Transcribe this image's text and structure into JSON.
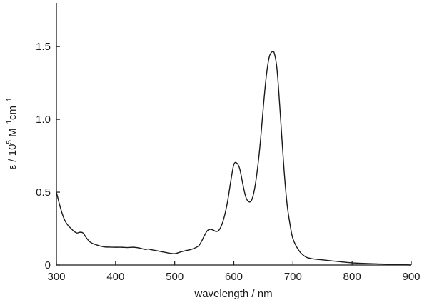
{
  "chart_data": {
    "type": "line",
    "title": "",
    "xlabel": "wavelength / nm",
    "ylabel": {
      "prefix": "ε / 10",
      "exp1": "5",
      "mid1": " M",
      "exp2": "−1",
      "mid2": "cm",
      "exp3": "−1"
    },
    "xlim": [
      300,
      900
    ],
    "ylim": [
      0,
      1.8
    ],
    "x_ticks": [
      300,
      400,
      500,
      600,
      700,
      800,
      900
    ],
    "x_tick_labels": [
      "300",
      "400",
      "500",
      "600",
      "700",
      "800",
      "900"
    ],
    "y_ticks": [
      0,
      0.5,
      1.0,
      1.5
    ],
    "y_tick_labels": [
      "0",
      "0.5",
      "1.0",
      "1.5"
    ],
    "grid": false,
    "series": [
      {
        "color": "#1a1a1a",
        "x": [
          300,
          305,
          310,
          315,
          320,
          325,
          330,
          335,
          340,
          345,
          350,
          355,
          360,
          370,
          380,
          390,
          400,
          410,
          420,
          430,
          440,
          450,
          455,
          460,
          470,
          480,
          490,
          500,
          510,
          520,
          530,
          540,
          545,
          550,
          555,
          560,
          565,
          570,
          575,
          580,
          585,
          590,
          595,
          600,
          605,
          610,
          615,
          620,
          625,
          630,
          635,
          640,
          645,
          650,
          655,
          660,
          665,
          668,
          672,
          675,
          680,
          685,
          690,
          695,
          700,
          710,
          720,
          730,
          750,
          800,
          850,
          900
        ],
        "y": [
          0.5,
          0.42,
          0.35,
          0.3,
          0.27,
          0.25,
          0.23,
          0.22,
          0.225,
          0.22,
          0.19,
          0.165,
          0.15,
          0.135,
          0.125,
          0.123,
          0.122,
          0.122,
          0.12,
          0.122,
          0.117,
          0.107,
          0.11,
          0.105,
          0.098,
          0.09,
          0.082,
          0.078,
          0.09,
          0.1,
          0.11,
          0.13,
          0.16,
          0.2,
          0.235,
          0.245,
          0.24,
          0.23,
          0.24,
          0.28,
          0.35,
          0.45,
          0.58,
          0.69,
          0.7,
          0.66,
          0.56,
          0.47,
          0.435,
          0.445,
          0.52,
          0.66,
          0.85,
          1.09,
          1.3,
          1.43,
          1.465,
          1.46,
          1.38,
          1.25,
          0.95,
          0.65,
          0.42,
          0.28,
          0.18,
          0.1,
          0.06,
          0.045,
          0.035,
          0.015,
          0.007,
          0.0
        ]
      }
    ]
  }
}
